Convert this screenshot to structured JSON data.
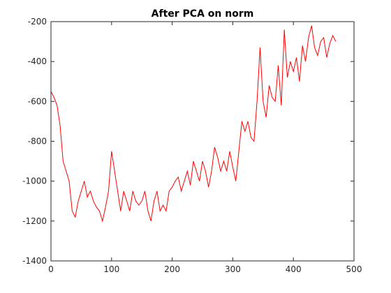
{
  "chart_data": {
    "type": "line",
    "title": "After PCA on norm",
    "x": [
      0,
      5,
      10,
      15,
      20,
      25,
      30,
      35,
      40,
      45,
      50,
      55,
      60,
      65,
      70,
      75,
      80,
      85,
      90,
      95,
      100,
      105,
      110,
      115,
      120,
      125,
      130,
      135,
      140,
      145,
      150,
      155,
      160,
      165,
      170,
      175,
      180,
      185,
      190,
      195,
      200,
      205,
      210,
      215,
      220,
      225,
      230,
      235,
      240,
      245,
      250,
      255,
      260,
      265,
      270,
      275,
      280,
      285,
      290,
      295,
      300,
      305,
      310,
      315,
      320,
      325,
      330,
      335,
      340,
      345,
      350,
      355,
      360,
      365,
      370,
      375,
      380,
      385,
      390,
      395,
      400,
      405,
      410,
      415,
      420,
      425,
      430,
      435,
      440,
      445,
      450,
      455,
      460,
      465,
      470
    ],
    "series": [
      {
        "color": "#ff0000",
        "values": [
          -550,
          -580,
          -620,
          -720,
          -900,
          -950,
          -1000,
          -1150,
          -1180,
          -1100,
          -1050,
          -1000,
          -1080,
          -1050,
          -1100,
          -1130,
          -1150,
          -1200,
          -1130,
          -1050,
          -850,
          -950,
          -1050,
          -1150,
          -1050,
          -1100,
          -1150,
          -1050,
          -1100,
          -1120,
          -1100,
          -1050,
          -1150,
          -1200,
          -1100,
          -1050,
          -1150,
          -1120,
          -1150,
          -1050,
          -1030,
          -1000,
          -980,
          -1050,
          -1000,
          -950,
          -1020,
          -900,
          -950,
          -1000,
          -900,
          -950,
          -1030,
          -950,
          -830,
          -880,
          -950,
          -900,
          -950,
          -850,
          -930,
          -1000,
          -850,
          -700,
          -750,
          -700,
          -780,
          -800,
          -600,
          -330,
          -600,
          -680,
          -520,
          -580,
          -600,
          -420,
          -620,
          -240,
          -480,
          -400,
          -450,
          -380,
          -500,
          -320,
          -400,
          -280,
          -220,
          -330,
          -370,
          -300,
          -280,
          -380,
          -310,
          -270,
          -300
        ]
      }
    ],
    "xlim": [
      0,
      500
    ],
    "xticks": [
      0,
      100,
      200,
      300,
      400,
      500
    ],
    "ylim": [
      -1400,
      -200
    ],
    "yticks": [
      -1400,
      -1200,
      -1000,
      -800,
      -600,
      -400,
      -200
    ]
  }
}
